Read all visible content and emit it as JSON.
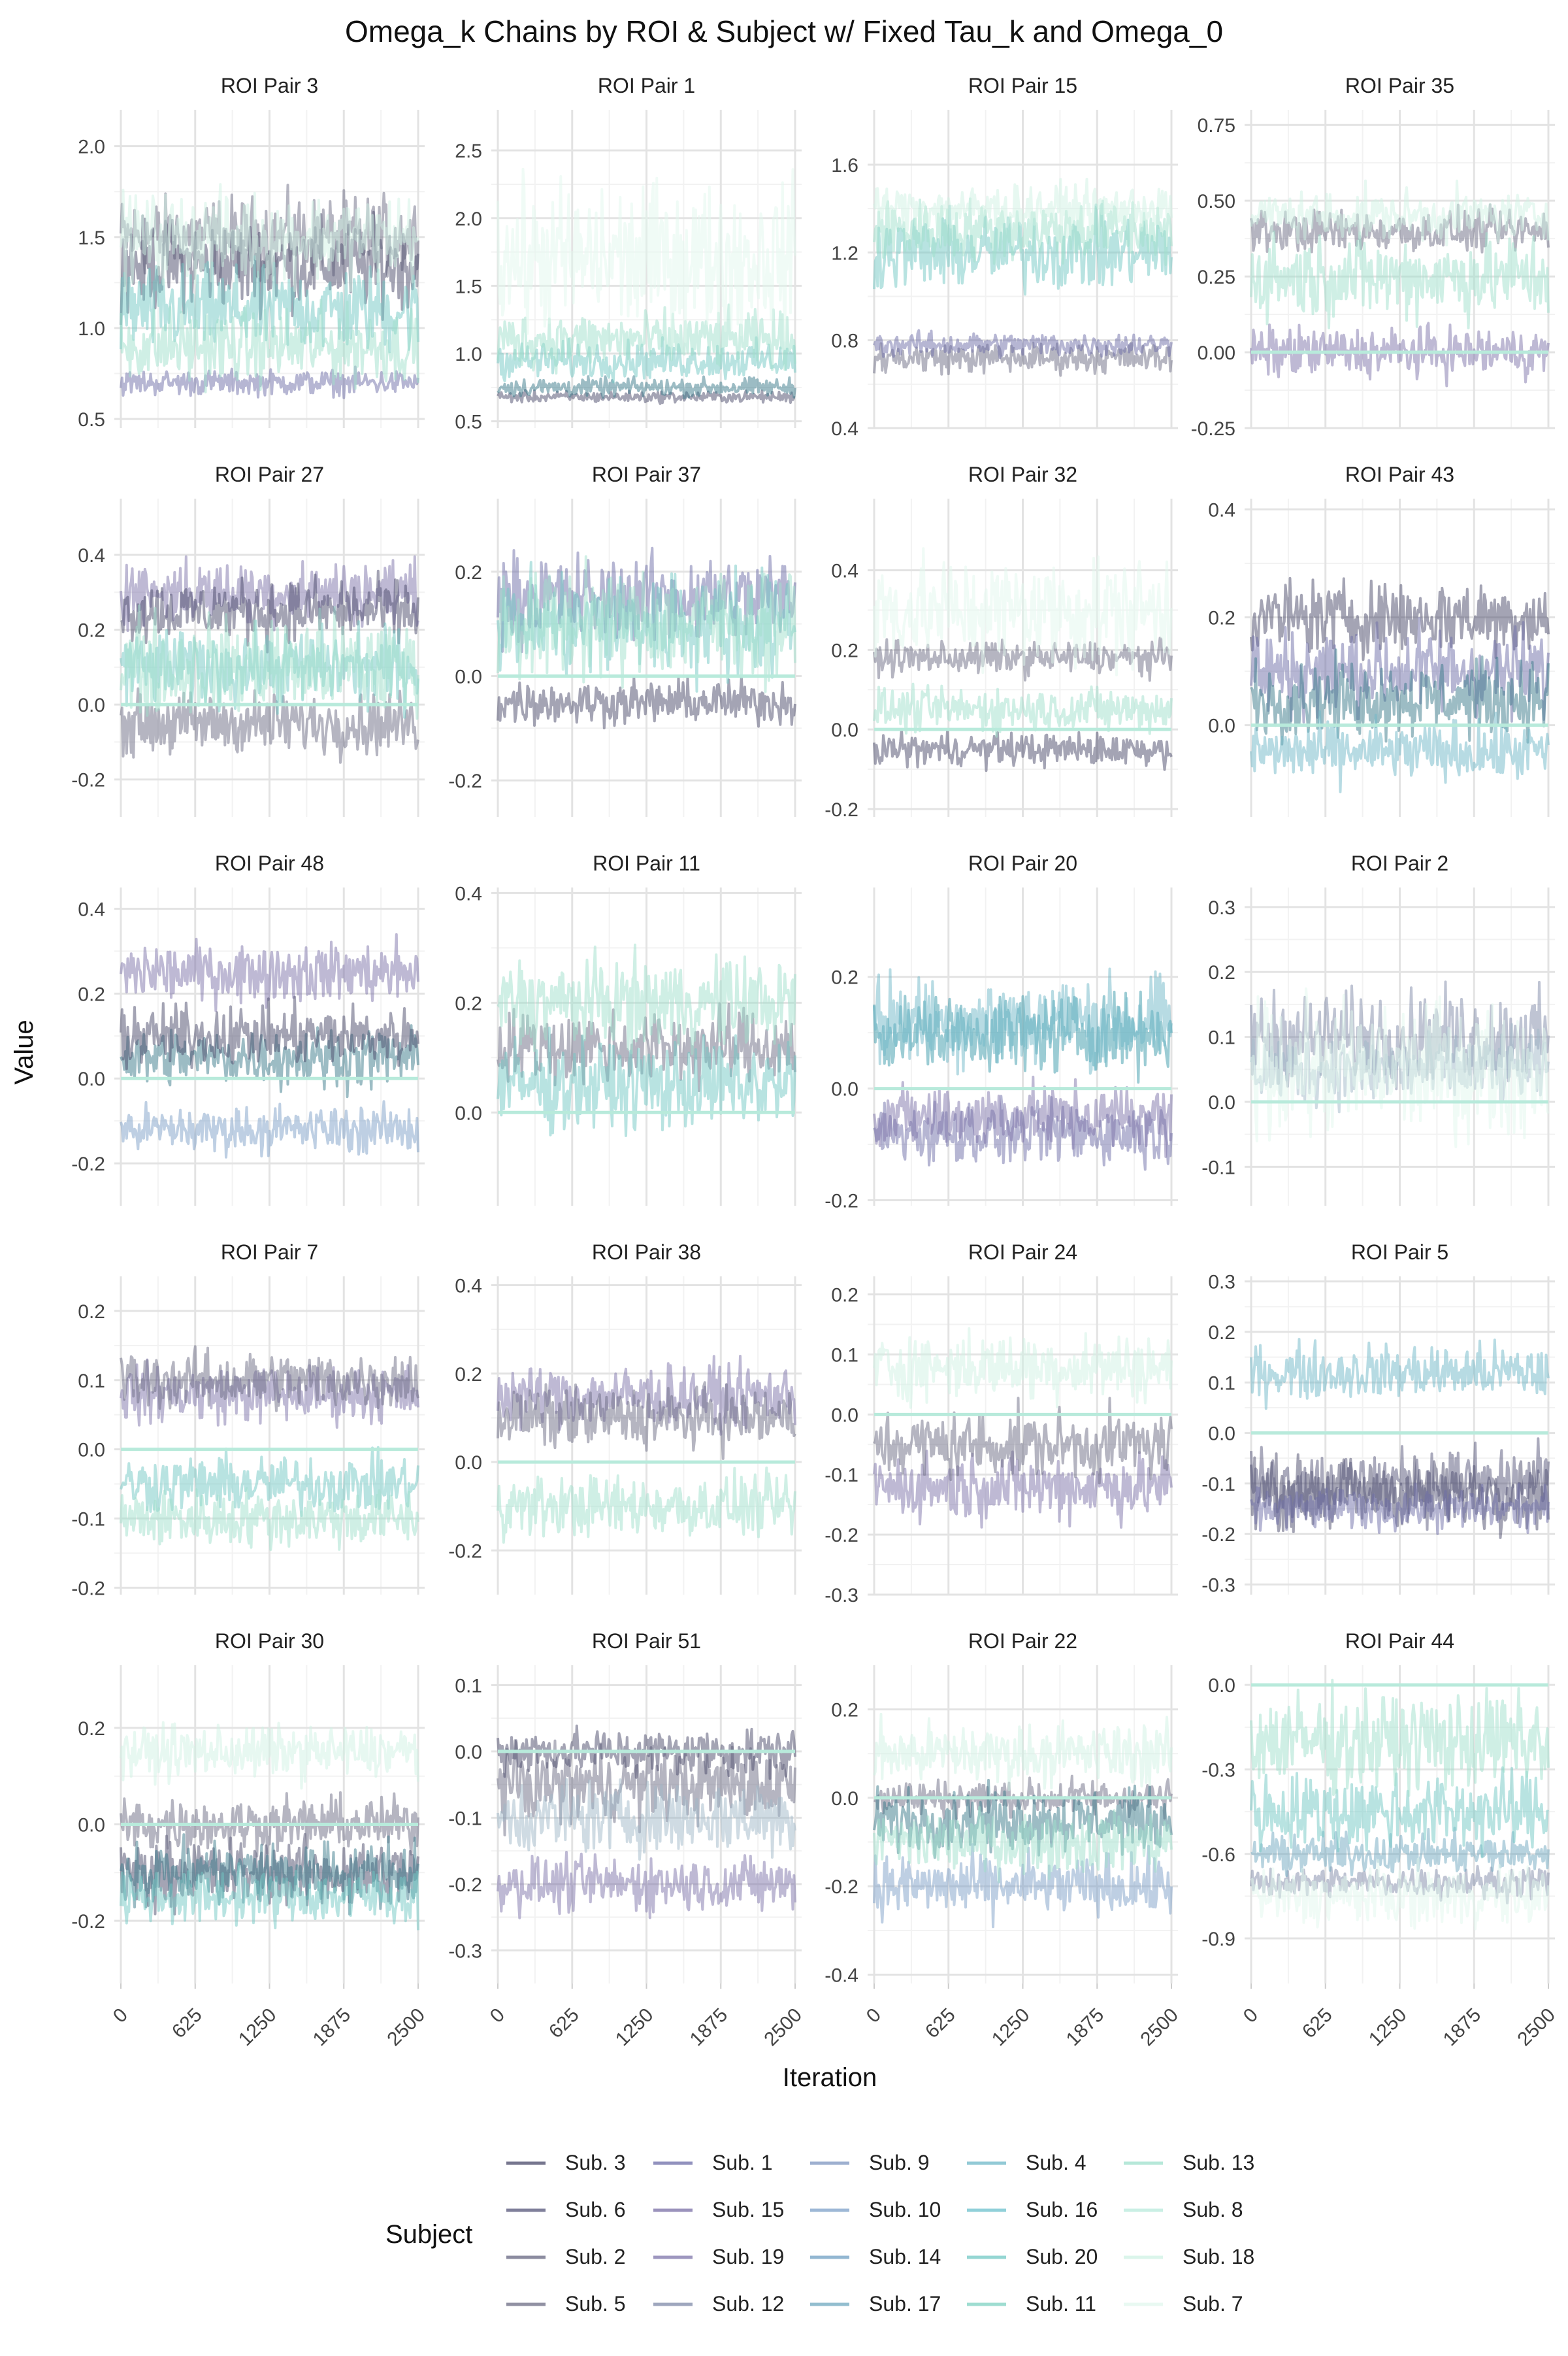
{
  "chart_data": {
    "type": "line",
    "title": "Omega_k Chains by ROI & Subject w/ Fixed Tau_k and Omega_0",
    "xlabel": "Iteration",
    "ylabel": "Value",
    "x_ticks": [
      0,
      625,
      1250,
      1875,
      2500
    ],
    "x_tick_labels": [
      "0",
      "625",
      "1250",
      "1875",
      "2500"
    ],
    "xlim": [
      0,
      2500
    ],
    "grid": true,
    "legend": {
      "title": "Subject",
      "position": "bottom",
      "entries": [
        {
          "name": "Sub. 3",
          "color": "#4a4a6a"
        },
        {
          "name": "Sub. 6",
          "color": "#55557a"
        },
        {
          "name": "Sub. 2",
          "color": "#666680"
        },
        {
          "name": "Sub. 5",
          "color": "#6c6c84"
        },
        {
          "name": "Sub. 1",
          "color": "#6e6ea8"
        },
        {
          "name": "Sub. 15",
          "color": "#7a6fa6"
        },
        {
          "name": "Sub. 19",
          "color": "#7e74aa"
        },
        {
          "name": "Sub. 12",
          "color": "#7f8aa8"
        },
        {
          "name": "Sub. 9",
          "color": "#7e96c0"
        },
        {
          "name": "Sub. 10",
          "color": "#7ea0c8"
        },
        {
          "name": "Sub. 14",
          "color": "#6f9fc3"
        },
        {
          "name": "Sub. 17",
          "color": "#6fa8bf"
        },
        {
          "name": "Sub. 4",
          "color": "#6fb8c8"
        },
        {
          "name": "Sub. 16",
          "color": "#6cc0cc"
        },
        {
          "name": "Sub. 20",
          "color": "#72c8c4"
        },
        {
          "name": "Sub. 11",
          "color": "#7fd2c2"
        },
        {
          "name": "Sub. 13",
          "color": "#9fe0cc"
        },
        {
          "name": "Sub. 8",
          "color": "#b8eadb"
        },
        {
          "name": "Sub. 18",
          "color": "#cff2e4"
        },
        {
          "name": "Sub. 7",
          "color": "#e2f7ee"
        }
      ]
    },
    "panels": [
      {
        "title": "ROI Pair 3",
        "ylim": [
          0.45,
          2.2
        ],
        "yticks": [
          0.5,
          1.0,
          1.5,
          2.0
        ],
        "ytick_labels": [
          "0.5",
          "1.0",
          "1.5",
          "2.0"
        ],
        "series": [
          {
            "color": "#6c6c84",
            "center": 1.5,
            "spread": 0.32
          },
          {
            "color": "#4a4a6a",
            "center": 1.35,
            "spread": 0.35
          },
          {
            "color": "#6e6ea8",
            "center": 0.7,
            "spread": 0.1
          },
          {
            "color": "#72c8c4",
            "center": 1.1,
            "spread": 0.35
          },
          {
            "color": "#9fe0cc",
            "center": 0.9,
            "spread": 0.3
          },
          {
            "color": "#cff2e4",
            "center": 1.5,
            "spread": 0.35
          }
        ]
      },
      {
        "title": "ROI Pair 1",
        "ylim": [
          0.45,
          2.8
        ],
        "yticks": [
          0.5,
          1.0,
          1.5,
          2.0,
          2.5
        ],
        "ytick_labels": [
          "0.5",
          "1.0",
          "1.5",
          "2.0",
          "2.5"
        ],
        "series": [
          {
            "color": "#4a4a6a",
            "center": 0.68,
            "spread": 0.06
          },
          {
            "color": "#3a7a8a",
            "center": 0.75,
            "spread": 0.1
          },
          {
            "color": "#72c8c4",
            "center": 0.95,
            "spread": 0.2
          },
          {
            "color": "#9fe0cc",
            "center": 1.1,
            "spread": 0.3
          },
          {
            "color": "#e2f7ee",
            "center": 1.7,
            "spread": 0.8
          }
        ]
      },
      {
        "title": "ROI Pair 15",
        "ylim": [
          0.4,
          1.85
        ],
        "yticks": [
          0.4,
          0.8,
          1.2,
          1.6
        ],
        "ytick_labels": [
          "0.4",
          "0.8",
          "1.2",
          "1.6"
        ],
        "series": [
          {
            "color": "#6c6c84",
            "center": 0.72,
            "spread": 0.1
          },
          {
            "color": "#6e6ea8",
            "center": 0.78,
            "spread": 0.08
          },
          {
            "color": "#72c8c4",
            "center": 1.2,
            "spread": 0.25
          },
          {
            "color": "#9fe0cc",
            "center": 1.3,
            "spread": 0.2
          },
          {
            "color": "#cff2e4",
            "center": 1.4,
            "spread": 0.15
          }
        ]
      },
      {
        "title": "ROI Pair 35",
        "ylim": [
          -0.25,
          0.8
        ],
        "yticks": [
          -0.25,
          0.0,
          0.25,
          0.5,
          0.75
        ],
        "ytick_labels": [
          "-0.25",
          "0.00",
          "0.25",
          "0.50",
          "0.75"
        ],
        "series": [
          {
            "color": "#7e74aa",
            "center": 0.0,
            "spread": 0.12
          },
          {
            "color": "#6c6c84",
            "center": 0.4,
            "spread": 0.1
          },
          {
            "color": "#9fe0cc",
            "center": 0.25,
            "spread": 0.2
          },
          {
            "color": "#cff2e4",
            "center": 0.45,
            "spread": 0.12
          }
        ]
      },
      {
        "title": "ROI Pair 27",
        "ylim": [
          -0.3,
          0.55
        ],
        "yticks": [
          -0.2,
          0.0,
          0.2,
          0.4
        ],
        "ytick_labels": [
          "-0.2",
          "0.0",
          "0.2",
          "0.4"
        ],
        "series": [
          {
            "color": "#7e74aa",
            "center": 0.3,
            "spread": 0.12
          },
          {
            "color": "#6c6c84",
            "center": -0.05,
            "spread": 0.12
          },
          {
            "color": "#4a4a6a",
            "center": 0.25,
            "spread": 0.12
          },
          {
            "color": "#72c8c4",
            "center": 0.1,
            "spread": 0.15
          },
          {
            "color": "#9fe0cc",
            "center": 0.1,
            "spread": 0.2
          }
        ]
      },
      {
        "title": "ROI Pair 37",
        "ylim": [
          -0.27,
          0.34
        ],
        "yticks": [
          -0.2,
          0.0,
          0.2
        ],
        "ytick_labels": [
          "-0.2",
          "0.0",
          "0.2"
        ],
        "series": [
          {
            "color": "#6e6ea8",
            "center": 0.15,
            "spread": 0.12
          },
          {
            "color": "#4a4a6a",
            "center": -0.05,
            "spread": 0.06
          },
          {
            "color": "#72c8c4",
            "center": 0.1,
            "spread": 0.15
          },
          {
            "color": "#9fe0cc",
            "center": 0.1,
            "spread": 0.15
          }
        ]
      },
      {
        "title": "ROI Pair 32",
        "ylim": [
          -0.22,
          0.58
        ],
        "yticks": [
          -0.2,
          0.0,
          0.2,
          0.4
        ],
        "ytick_labels": [
          "-0.2",
          "0.0",
          "0.2",
          "0.4"
        ],
        "series": [
          {
            "color": "#6c6c84",
            "center": 0.18,
            "spread": 0.06
          },
          {
            "color": "#4a4a6a",
            "center": -0.05,
            "spread": 0.06
          },
          {
            "color": "#9fe0cc",
            "center": 0.05,
            "spread": 0.08
          },
          {
            "color": "#e2f7ee",
            "center": 0.3,
            "spread": 0.2
          }
        ]
      },
      {
        "title": "ROI Pair 43",
        "ylim": [
          -0.17,
          0.42
        ],
        "yticks": [
          0.0,
          0.2,
          0.4
        ],
        "ytick_labels": [
          "0.0",
          "0.2",
          "0.4"
        ],
        "series": [
          {
            "color": "#4a4a6a",
            "center": 0.2,
            "spread": 0.1
          },
          {
            "color": "#6e6ea8",
            "center": 0.1,
            "spread": 0.12
          },
          {
            "color": "#3a7a8a",
            "center": 0.05,
            "spread": 0.1
          },
          {
            "color": "#6fb8c8",
            "center": -0.05,
            "spread": 0.08
          }
        ]
      },
      {
        "title": "ROI Pair 48",
        "ylim": [
          -0.3,
          0.45
        ],
        "yticks": [
          -0.2,
          0.0,
          0.2,
          0.4
        ],
        "ytick_labels": [
          "-0.2",
          "0.0",
          "0.2",
          "0.4"
        ],
        "series": [
          {
            "color": "#7e74aa",
            "center": 0.25,
            "spread": 0.1
          },
          {
            "color": "#7ea0c8",
            "center": -0.12,
            "spread": 0.08
          },
          {
            "color": "#3a7a8a",
            "center": 0.05,
            "spread": 0.1
          },
          {
            "color": "#4a4a6a",
            "center": 0.1,
            "spread": 0.1
          }
        ]
      },
      {
        "title": "ROI Pair 11",
        "ylim": [
          -0.17,
          0.41
        ],
        "yticks": [
          0.0,
          0.2,
          0.4
        ],
        "ytick_labels": [
          "0.0",
          "0.2",
          "0.4"
        ],
        "series": [
          {
            "color": "#6c6c84",
            "center": 0.12,
            "spread": 0.1
          },
          {
            "color": "#72c8c4",
            "center": 0.05,
            "spread": 0.12
          },
          {
            "color": "#9fe0cc",
            "center": 0.2,
            "spread": 0.12
          }
        ]
      },
      {
        "title": "ROI Pair 20",
        "ylim": [
          -0.21,
          0.36
        ],
        "yticks": [
          -0.2,
          0.0,
          0.2
        ],
        "ytick_labels": [
          "-0.2",
          "0.0",
          "0.2"
        ],
        "series": [
          {
            "color": "#6e6ea8",
            "center": -0.08,
            "spread": 0.08
          },
          {
            "color": "#7e74aa",
            "center": -0.05,
            "spread": 0.08
          },
          {
            "color": "#3a9aaa",
            "center": 0.1,
            "spread": 0.1
          },
          {
            "color": "#6fb8c8",
            "center": 0.12,
            "spread": 0.12
          }
        ]
      },
      {
        "title": "ROI Pair 2",
        "ylim": [
          -0.16,
          0.33
        ],
        "yticks": [
          -0.1,
          0.0,
          0.1,
          0.2,
          0.3
        ],
        "ytick_labels": [
          "-0.1",
          "0.0",
          "0.1",
          "0.2",
          "0.3"
        ],
        "series": [
          {
            "color": "#7f8aa8",
            "center": 0.1,
            "spread": 0.1
          },
          {
            "color": "#9fb8c8",
            "center": 0.05,
            "spread": 0.08
          },
          {
            "color": "#e2f7ee",
            "center": 0.05,
            "spread": 0.15
          }
        ]
      },
      {
        "title": "ROI Pair 7",
        "ylim": [
          -0.21,
          0.25
        ],
        "yticks": [
          -0.2,
          -0.1,
          0.0,
          0.1,
          0.2
        ],
        "ytick_labels": [
          "-0.2",
          "-0.1",
          "0.0",
          "0.1",
          "0.2"
        ],
        "series": [
          {
            "color": "#7e74aa",
            "center": 0.08,
            "spread": 0.06
          },
          {
            "color": "#6c6c84",
            "center": 0.1,
            "spread": 0.06
          },
          {
            "color": "#72c8c4",
            "center": -0.05,
            "spread": 0.06
          },
          {
            "color": "#9fe0cc",
            "center": -0.1,
            "spread": 0.06
          }
        ]
      },
      {
        "title": "ROI Pair 38",
        "ylim": [
          -0.3,
          0.42
        ],
        "yticks": [
          -0.2,
          0.0,
          0.2,
          0.4
        ],
        "ytick_labels": [
          "-0.2",
          "0.0",
          "0.2",
          "0.4"
        ],
        "series": [
          {
            "color": "#7e74aa",
            "center": 0.15,
            "spread": 0.1
          },
          {
            "color": "#6c6c84",
            "center": 0.1,
            "spread": 0.1
          },
          {
            "color": "#9fe0cc",
            "center": -0.1,
            "spread": 0.1
          }
        ]
      },
      {
        "title": "ROI Pair 24",
        "ylim": [
          -0.3,
          0.23
        ],
        "yticks": [
          -0.3,
          -0.2,
          -0.1,
          0.0,
          0.1,
          0.2
        ],
        "ytick_labels": [
          "-0.3",
          "-0.2",
          "-0.1",
          "0.0",
          "0.1",
          "0.2"
        ],
        "series": [
          {
            "color": "#7e74aa",
            "center": -0.12,
            "spread": 0.08
          },
          {
            "color": "#6c6c84",
            "center": -0.05,
            "spread": 0.08
          },
          {
            "color": "#cff2e4",
            "center": 0.08,
            "spread": 0.08
          }
        ]
      },
      {
        "title": "ROI Pair 5",
        "ylim": [
          -0.32,
          0.31
        ],
        "yticks": [
          -0.3,
          -0.2,
          -0.1,
          0.0,
          0.1,
          0.2,
          0.3
        ],
        "ytick_labels": [
          "-0.3",
          "-0.2",
          "-0.1",
          "0.0",
          "0.1",
          "0.2",
          "0.3"
        ],
        "series": [
          {
            "color": "#4a4a6a",
            "center": -0.12,
            "spread": 0.1
          },
          {
            "color": "#55557a",
            "center": -0.1,
            "spread": 0.1
          },
          {
            "color": "#6e6ea8",
            "center": -0.15,
            "spread": 0.06
          },
          {
            "color": "#6fb8c8",
            "center": 0.12,
            "spread": 0.08
          }
        ]
      },
      {
        "title": "ROI Pair 30",
        "ylim": [
          -0.33,
          0.33
        ],
        "yticks": [
          -0.2,
          0.0,
          0.2
        ],
        "ytick_labels": [
          "-0.2",
          "0.0",
          "0.2"
        ],
        "series": [
          {
            "color": "#4a4a6a",
            "center": -0.1,
            "spread": 0.1
          },
          {
            "color": "#6c6c84",
            "center": 0.0,
            "spread": 0.08
          },
          {
            "color": "#3a7a8a",
            "center": -0.1,
            "spread": 0.1
          },
          {
            "color": "#72c8c4",
            "center": -0.15,
            "spread": 0.08
          },
          {
            "color": "#cff2e4",
            "center": 0.15,
            "spread": 0.08
          }
        ]
      },
      {
        "title": "ROI Pair 51",
        "ylim": [
          -0.35,
          0.13
        ],
        "yticks": [
          -0.3,
          -0.2,
          -0.1,
          0.0,
          0.1
        ],
        "ytick_labels": [
          "-0.3",
          "-0.2",
          "-0.1",
          "0.0",
          "0.1"
        ],
        "series": [
          {
            "color": "#6c6c84",
            "center": -0.05,
            "spread": 0.08
          },
          {
            "color": "#7e74aa",
            "center": -0.2,
            "spread": 0.06
          },
          {
            "color": "#4a4a6a",
            "center": 0.0,
            "spread": 0.05
          },
          {
            "color": "#9fb8c8",
            "center": -0.1,
            "spread": 0.08
          }
        ]
      },
      {
        "title": "ROI Pair 22",
        "ylim": [
          -0.42,
          0.3
        ],
        "yticks": [
          -0.4,
          -0.2,
          0.0,
          0.2
        ],
        "ytick_labels": [
          "-0.4",
          "-0.2",
          "0.0",
          "0.2"
        ],
        "series": [
          {
            "color": "#6c6c84",
            "center": 0.0,
            "spread": 0.06
          },
          {
            "color": "#3a7a8a",
            "center": -0.05,
            "spread": 0.1
          },
          {
            "color": "#7ea0c8",
            "center": -0.2,
            "spread": 0.1
          },
          {
            "color": "#9fe0cc",
            "center": -0.1,
            "spread": 0.1
          },
          {
            "color": "#cff2e4",
            "center": 0.1,
            "spread": 0.1
          }
        ]
      },
      {
        "title": "ROI Pair 44",
        "ylim": [
          -1.06,
          0.07
        ],
        "yticks": [
          -0.9,
          -0.6,
          -0.3,
          0.0
        ],
        "ytick_labels": [
          "-0.9",
          "-0.6",
          "-0.3",
          "0.0"
        ],
        "series": [
          {
            "color": "#7f8aa8",
            "center": -0.7,
            "spread": 0.08
          },
          {
            "color": "#6fa8bf",
            "center": -0.6,
            "spread": 0.1
          },
          {
            "color": "#72c8c4",
            "center": -0.45,
            "spread": 0.2
          },
          {
            "color": "#9fe0cc",
            "center": -0.2,
            "spread": 0.25
          },
          {
            "color": "#e2f7ee",
            "center": -0.75,
            "spread": 0.15
          }
        ]
      }
    ]
  }
}
